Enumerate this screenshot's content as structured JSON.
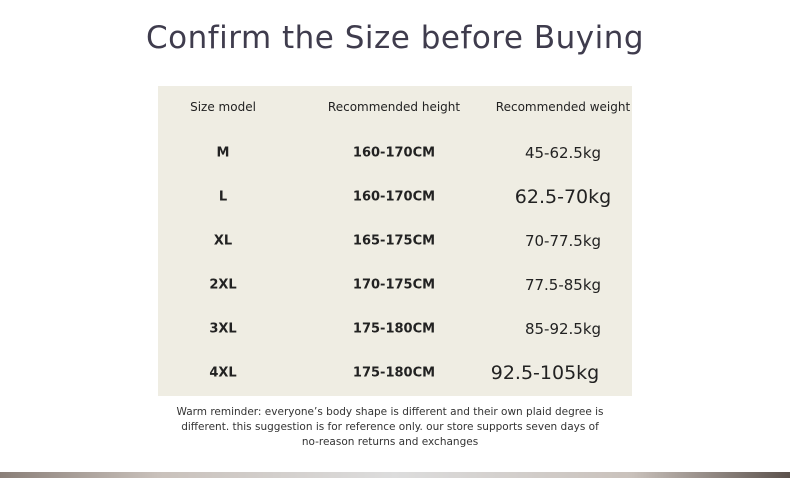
{
  "header": {
    "title": "Confirm the Size before Buying"
  },
  "table": {
    "columns": [
      "Size model",
      "Recommended height",
      "Recommended weight"
    ],
    "rows": [
      [
        "M",
        "160-170CM",
        "45-62.5kg"
      ],
      [
        "L",
        "160-170CM",
        "62.5-70kg"
      ],
      [
        "XL",
        "165-175CM",
        "70-77.5kg"
      ],
      [
        "2XL",
        "170-175CM",
        "77.5-85kg"
      ],
      [
        "3XL",
        "175-180CM",
        "85-92.5kg"
      ],
      [
        "4XL",
        "175-180CM",
        "92.5-105kg"
      ]
    ]
  },
  "footer": {
    "lines": [
      "Warm reminder: everyone’s body shape is different and their own plaid degree is",
      "different. this suggestion is for reference only. our store supports seven days of",
      "no-reason returns and exchanges"
    ]
  }
}
